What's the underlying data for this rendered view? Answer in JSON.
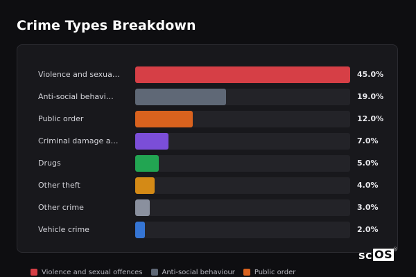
{
  "title": "Crime Types Breakdown",
  "chart_data": {
    "type": "bar",
    "orientation": "horizontal",
    "title": "Crime Types Breakdown",
    "xlim": [
      0,
      45
    ],
    "categories": [
      "Violence and sexua…",
      "Anti-social behavi…",
      "Public order",
      "Criminal damage an…",
      "Drugs",
      "Other theft",
      "Other crime",
      "Vehicle crime"
    ],
    "values": [
      45.0,
      19.0,
      12.0,
      7.0,
      5.0,
      4.0,
      3.0,
      2.0
    ],
    "value_labels": [
      "45.0%",
      "19.0%",
      "12.0%",
      "7.0%",
      "5.0%",
      "4.0%",
      "3.0%",
      "2.0%"
    ],
    "colors": [
      "#d63f46",
      "#5f6876",
      "#d9621e",
      "#7b4ed8",
      "#22a552",
      "#d48a16",
      "#8a909e",
      "#3575d4"
    ],
    "legend": {
      "placement": "bottom",
      "entries": [
        {
          "label": "Violence and sexual offences",
          "color": "#d63f46"
        },
        {
          "label": "Anti-social behaviour",
          "color": "#5f6876"
        },
        {
          "label": "Public order",
          "color": "#d9621e"
        }
      ]
    }
  },
  "logo": {
    "text_plain": "sc",
    "text_boxed": "OS",
    "mark": "®"
  }
}
